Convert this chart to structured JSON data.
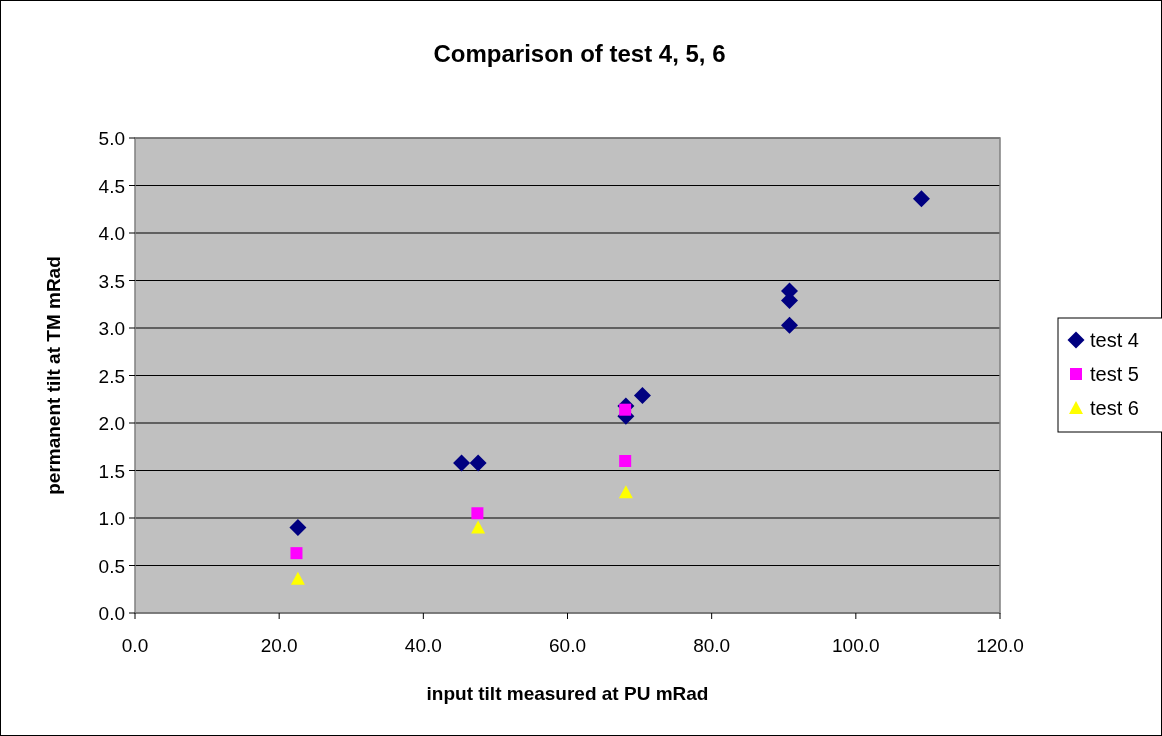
{
  "chart_data": {
    "type": "scatter",
    "title": "Comparison of test 4, 5, 6",
    "xlabel": "input tilt measured at PU mRad",
    "ylabel": "permanent tilt at TM mRad",
    "xlim": [
      0,
      120
    ],
    "xticks": [
      {
        "value": 0,
        "label": "0.0"
      },
      {
        "value": 20,
        "label": "20.0"
      },
      {
        "value": 40,
        "label": "40.0"
      },
      {
        "value": 60,
        "label": "60.0"
      },
      {
        "value": 80,
        "label": "80.0"
      },
      {
        "value": 100,
        "label": "100.0"
      },
      {
        "value": 120,
        "label": "120.0"
      }
    ],
    "ylim": [
      0,
      5
    ],
    "yticks": [
      {
        "value": 0,
        "label": "0.0"
      },
      {
        "value": 0.5,
        "label": "0.5"
      },
      {
        "value": 1,
        "label": "1.0"
      },
      {
        "value": 1.5,
        "label": "1.5"
      },
      {
        "value": 2,
        "label": "2.0"
      },
      {
        "value": 2.5,
        "label": "2.5"
      },
      {
        "value": 3,
        "label": "3.0"
      },
      {
        "value": 3.5,
        "label": "3.5"
      },
      {
        "value": 4,
        "label": "4.0"
      },
      {
        "value": 4.5,
        "label": "4.5"
      },
      {
        "value": 5,
        "label": "5.0"
      }
    ],
    "grid": "y",
    "legend": "right",
    "series": [
      {
        "name": "test 4",
        "color": "#000080",
        "marker": "diamond",
        "x": [
          22.6,
          45.3,
          47.6,
          68.1,
          68.1,
          70.4,
          90.8,
          90.8,
          90.8,
          109.1
        ],
        "values": [
          0.9,
          1.58,
          1.58,
          2.07,
          2.18,
          2.29,
          3.39,
          3.29,
          3.03,
          4.36
        ]
      },
      {
        "name": "test 5",
        "color": "#ff00ff",
        "marker": "square",
        "x": [
          22.4,
          47.5,
          68.0,
          68.0
        ],
        "values": [
          0.63,
          1.05,
          2.14,
          1.6
        ]
      },
      {
        "name": "test 6",
        "color": "#ffff00",
        "marker": "triangle",
        "x": [
          22.6,
          47.6,
          68.1
        ],
        "values": [
          0.36,
          0.9,
          1.27
        ]
      }
    ]
  }
}
